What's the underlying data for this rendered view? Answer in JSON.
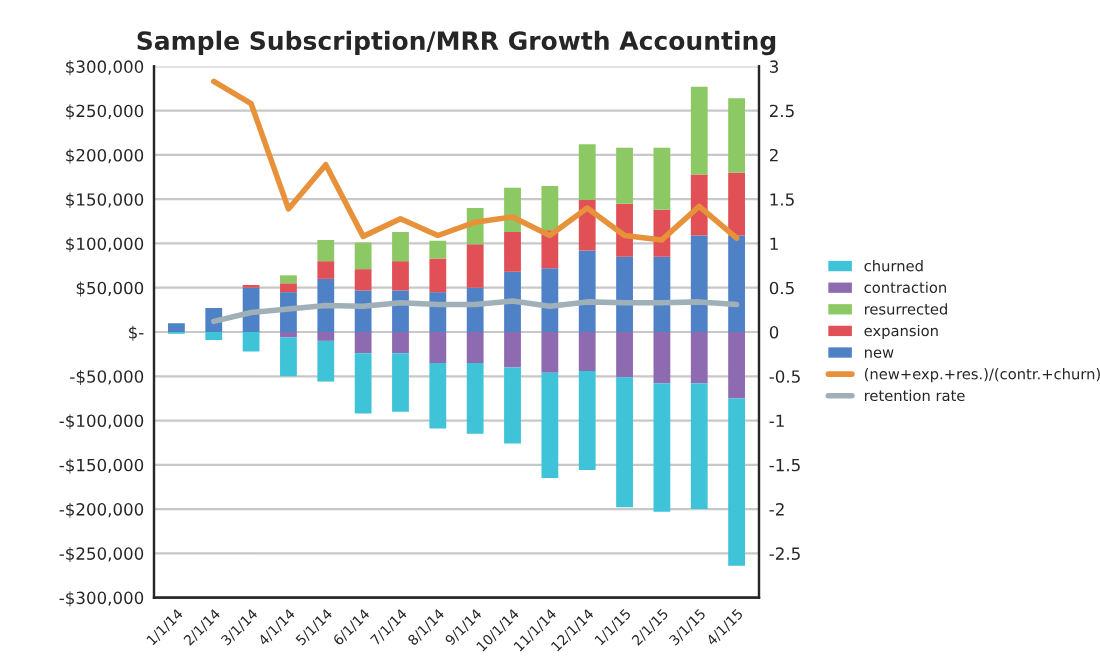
{
  "chart_data": {
    "type": "bar",
    "title": "Sample Subscription/MRR Growth Accounting",
    "stacked": true,
    "categories": [
      "1/1/14",
      "2/1/14",
      "3/1/14",
      "4/1/14",
      "5/1/14",
      "6/1/14",
      "7/1/14",
      "8/1/14",
      "9/1/14",
      "10/1/14",
      "11/1/14",
      "12/1/14",
      "1/1/15",
      "2/1/15",
      "3/1/15",
      "4/1/15"
    ],
    "series": [
      {
        "name": "new",
        "color": "#4f81c7",
        "values": [
          10000,
          27000,
          50000,
          45000,
          60000,
          47000,
          47000,
          45000,
          50000,
          68000,
          72000,
          92000,
          85000,
          85000,
          109000,
          109000
        ]
      },
      {
        "name": "expansion",
        "color": "#e05056",
        "values": [
          null,
          null,
          3000,
          10000,
          20000,
          24000,
          33000,
          38000,
          49000,
          45000,
          43000,
          57000,
          60000,
          53000,
          69000,
          71000
        ]
      },
      {
        "name": "resurrected",
        "color": "#8cc864",
        "values": [
          null,
          null,
          null,
          9000,
          24000,
          30000,
          33000,
          20000,
          41000,
          50000,
          50000,
          63000,
          63000,
          70000,
          99000,
          84000
        ]
      },
      {
        "name": "contraction",
        "color": "#8e6bb0",
        "values": [
          null,
          null,
          null,
          -6000,
          -10000,
          -24000,
          -24000,
          -35000,
          -35000,
          -40000,
          -46000,
          -44000,
          -51000,
          -58000,
          -58000,
          -75000
        ]
      },
      {
        "name": "churned",
        "color": "#3ec3d8",
        "values": [
          -2000,
          -9000,
          -22000,
          -44000,
          -46000,
          -68000,
          -66000,
          -74000,
          -80000,
          -86000,
          -119000,
          -112000,
          -147000,
          -145000,
          -142000,
          -189000
        ]
      },
      {
        "name": "(new+exp.+res.)/(contr.+churn)",
        "type": "line",
        "axis": "y2",
        "color": "#e7923a",
        "values": [
          null,
          2.83,
          2.58,
          1.39,
          1.89,
          1.08,
          1.28,
          1.09,
          1.24,
          1.3,
          1.09,
          1.4,
          1.09,
          1.04,
          1.42,
          1.06
        ]
      },
      {
        "name": "retention rate",
        "type": "line",
        "axis": "y2",
        "color": "#a0b0b8",
        "values": [
          null,
          0.12,
          0.22,
          0.26,
          0.3,
          0.29,
          0.33,
          0.31,
          0.31,
          0.35,
          0.29,
          0.34,
          0.33,
          0.33,
          0.34,
          0.31
        ]
      }
    ],
    "ylim": [
      -300000,
      300000
    ],
    "yticks": [
      {
        "value": -300000,
        "label": "-$300,000"
      },
      {
        "value": -250000,
        "label": "-$250,000"
      },
      {
        "value": -200000,
        "label": "-$200,000"
      },
      {
        "value": -150000,
        "label": "-$150,000"
      },
      {
        "value": -100000,
        "label": "-$100,000"
      },
      {
        "value": -50000,
        "label": "-$50,000"
      },
      {
        "value": 0,
        "label": "$-"
      },
      {
        "value": 50000,
        "label": "$50,000"
      },
      {
        "value": 100000,
        "label": "$100,000"
      },
      {
        "value": 150000,
        "label": "$150,000"
      },
      {
        "value": 200000,
        "label": "$200,000"
      },
      {
        "value": 250000,
        "label": "$250,000"
      },
      {
        "value": 300000,
        "label": "$300,000"
      }
    ],
    "y2lim": [
      -3,
      3
    ],
    "y2ticks": [
      -2.5,
      -2,
      -1.5,
      -1,
      -0.5,
      0,
      0.5,
      1,
      1.5,
      2,
      2.5,
      3
    ],
    "grid": "y",
    "legend": "right"
  }
}
